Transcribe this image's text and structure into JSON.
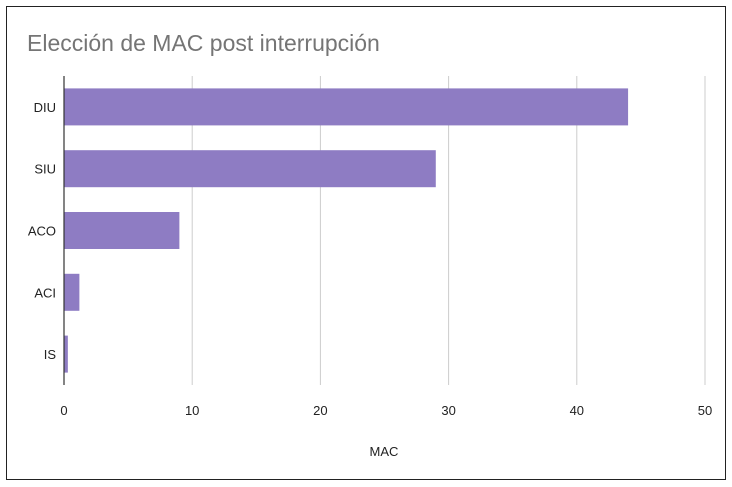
{
  "chart_data": {
    "type": "bar",
    "orientation": "horizontal",
    "title": "Elección de MAC post interrupción",
    "xlabel": "MAC",
    "ylabel": "",
    "categories": [
      "DIU",
      "SIU",
      "ACO",
      "ACI",
      "IS"
    ],
    "values": [
      44,
      29,
      9,
      1.2,
      0.3
    ],
    "xlim": [
      0,
      50
    ],
    "xticks": [
      0,
      10,
      20,
      30,
      40,
      50
    ],
    "grid": true,
    "legend": "none",
    "bar_color": "#8e7cc3"
  }
}
